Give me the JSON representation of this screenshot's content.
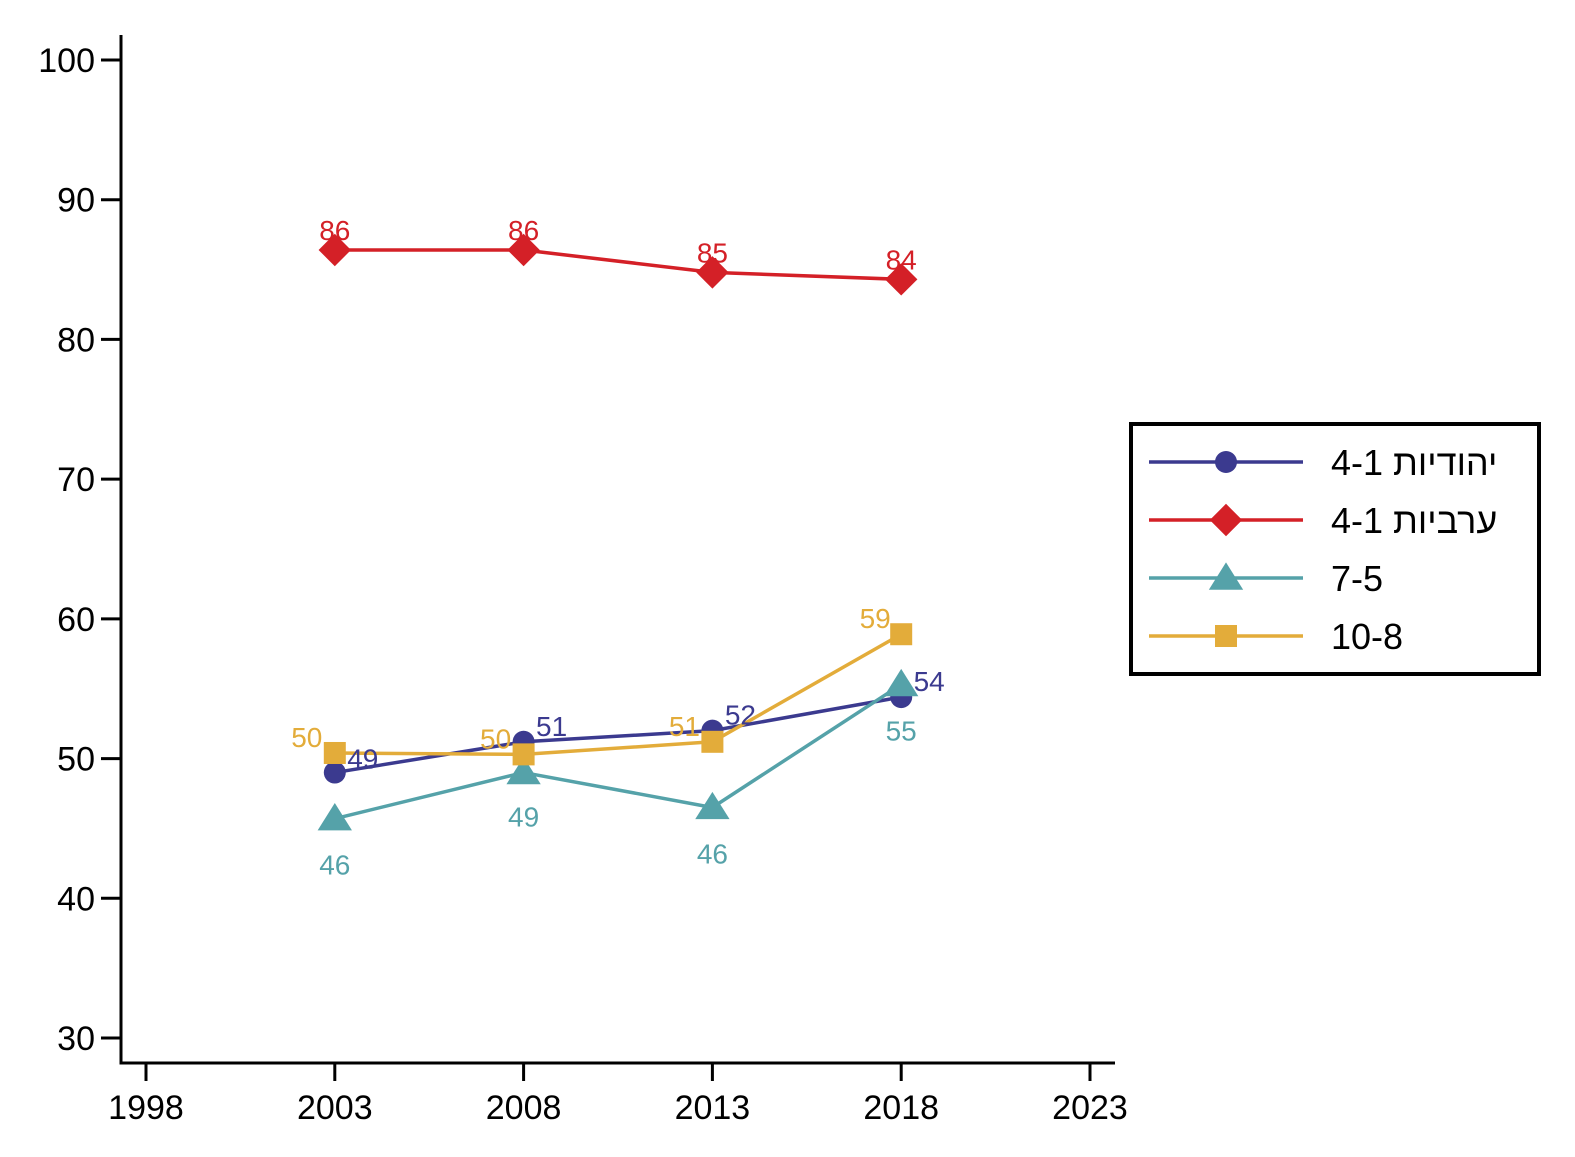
{
  "chart_data": {
    "type": "line",
    "title": "",
    "xlabel": "",
    "ylabel": "",
    "xlim": [
      1998,
      2023
    ],
    "ylim": [
      30,
      100
    ],
    "x_ticks": [
      "1998",
      "2003",
      "2008",
      "2013",
      "2018",
      "2023"
    ],
    "y_ticks": [
      "30",
      "40",
      "50",
      "60",
      "70",
      "80",
      "90",
      "100"
    ],
    "x": [
      2003,
      2008,
      2013,
      2018
    ],
    "grid": false,
    "legend_position": "right",
    "series": [
      {
        "name": "יהודיות 4-1",
        "color": "#3b3a8f",
        "marker": "circle",
        "values": [
          49.0,
          51.2,
          52.0,
          54.4
        ],
        "labels": [
          "49",
          "51",
          "52",
          "54"
        ]
      },
      {
        "name": "ערביות 4-1",
        "color": "#d42027",
        "marker": "diamond",
        "values": [
          86.4,
          86.4,
          84.8,
          84.3
        ],
        "labels": [
          "86",
          "86",
          "85",
          "84"
        ]
      },
      {
        "name": "7-5",
        "color": "#55a2a9",
        "marker": "triangle",
        "values": [
          45.7,
          49.0,
          46.5,
          55.3
        ],
        "labels": [
          "46",
          "49",
          "46",
          "55"
        ]
      },
      {
        "name": "10-8",
        "color": "#e3ac3a",
        "marker": "square",
        "values": [
          50.4,
          50.3,
          51.2,
          58.9
        ],
        "labels": [
          "50",
          "50",
          "51",
          "59"
        ]
      }
    ]
  }
}
